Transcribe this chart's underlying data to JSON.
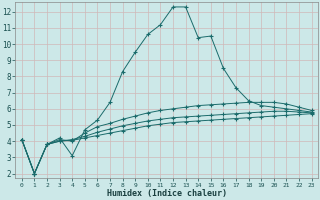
{
  "xlabel": "Humidex (Indice chaleur)",
  "background_color": "#cce8e8",
  "grid_color": "#b8d8d8",
  "line_color": "#1a6b6b",
  "xlim": [
    -0.5,
    23.5
  ],
  "ylim": [
    1.7,
    12.6
  ],
  "xticks": [
    0,
    1,
    2,
    3,
    4,
    5,
    6,
    7,
    8,
    9,
    10,
    11,
    12,
    13,
    14,
    15,
    16,
    17,
    18,
    19,
    20,
    21,
    22,
    23
  ],
  "yticks": [
    2,
    3,
    4,
    5,
    6,
    7,
    8,
    9,
    10,
    11,
    12
  ],
  "series": [
    {
      "x": [
        0,
        1,
        2,
        3,
        4,
        5,
        6,
        7,
        8,
        9,
        10,
        11,
        12,
        13,
        14,
        15,
        16,
        17,
        18,
        19,
        20,
        21,
        22,
        23
      ],
      "y": [
        4.1,
        2.0,
        3.8,
        4.2,
        3.1,
        4.7,
        5.3,
        6.4,
        8.3,
        9.5,
        10.6,
        11.2,
        12.3,
        12.3,
        10.4,
        10.5,
        8.5,
        7.3,
        6.5,
        6.2,
        6.1,
        6.0,
        5.9,
        5.8
      ]
    },
    {
      "x": [
        0,
        1,
        2,
        3,
        4,
        5,
        6,
        7,
        8,
        9,
        10,
        11,
        12,
        13,
        14,
        15,
        16,
        17,
        18,
        19,
        20,
        21,
        22,
        23
      ],
      "y": [
        4.1,
        2.0,
        3.8,
        4.1,
        4.0,
        4.5,
        4.9,
        5.1,
        5.35,
        5.55,
        5.75,
        5.9,
        6.0,
        6.1,
        6.2,
        6.25,
        6.3,
        6.35,
        6.4,
        6.4,
        6.4,
        6.3,
        6.1,
        5.9
      ]
    },
    {
      "x": [
        0,
        1,
        2,
        3,
        4,
        5,
        6,
        7,
        8,
        9,
        10,
        11,
        12,
        13,
        14,
        15,
        16,
        17,
        18,
        19,
        20,
        21,
        22,
        23
      ],
      "y": [
        4.1,
        2.0,
        3.8,
        4.0,
        4.1,
        4.3,
        4.55,
        4.75,
        4.95,
        5.1,
        5.25,
        5.35,
        5.45,
        5.5,
        5.55,
        5.6,
        5.65,
        5.7,
        5.75,
        5.8,
        5.85,
        5.85,
        5.8,
        5.75
      ]
    },
    {
      "x": [
        0,
        1,
        2,
        3,
        4,
        5,
        6,
        7,
        8,
        9,
        10,
        11,
        12,
        13,
        14,
        15,
        16,
        17,
        18,
        19,
        20,
        21,
        22,
        23
      ],
      "y": [
        4.1,
        2.0,
        3.8,
        4.0,
        4.05,
        4.2,
        4.35,
        4.5,
        4.65,
        4.8,
        4.95,
        5.05,
        5.15,
        5.2,
        5.25,
        5.3,
        5.35,
        5.4,
        5.45,
        5.5,
        5.55,
        5.6,
        5.65,
        5.7
      ]
    }
  ]
}
